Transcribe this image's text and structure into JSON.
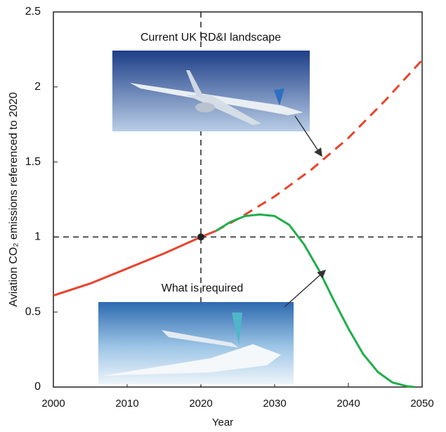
{
  "chart_data": {
    "type": "line",
    "xlabel": "Year",
    "ylabel": "Aviation CO₂ emissions referenced to 2020",
    "xlim": [
      2000,
      2050
    ],
    "ylim": [
      0,
      2.5
    ],
    "xticks": [
      2000,
      2010,
      2020,
      2030,
      2040,
      2050
    ],
    "yticks": [
      0,
      0.5,
      1,
      1.5,
      2,
      2.5
    ],
    "reference_lines": {
      "x": 2020,
      "y": 1
    },
    "marker": {
      "x": 2020,
      "y": 1
    },
    "series": [
      {
        "color": "#e8432c",
        "dashed": false,
        "x": [
          2000,
          2005,
          2010,
          2015,
          2020,
          2022
        ],
        "values": [
          0.61,
          0.69,
          0.79,
          0.89,
          1.0,
          1.04
        ]
      },
      {
        "color": "#e8432c",
        "dashed": true,
        "x": [
          2022,
          2025,
          2030,
          2035,
          2040,
          2045,
          2050
        ],
        "values": [
          1.04,
          1.12,
          1.27,
          1.45,
          1.66,
          1.91,
          2.18
        ]
      },
      {
        "color": "#1fae4b",
        "dashed": false,
        "x": [
          2022,
          2024,
          2026,
          2028,
          2030,
          2032,
          2034,
          2036,
          2038,
          2040,
          2042,
          2044,
          2046,
          2048,
          2049
        ],
        "values": [
          1.04,
          1.1,
          1.14,
          1.15,
          1.14,
          1.08,
          0.95,
          0.78,
          0.58,
          0.39,
          0.22,
          0.1,
          0.03,
          0.005,
          0
        ]
      }
    ],
    "annotations": [
      "Current UK RD&I landscape",
      "What is required"
    ]
  }
}
